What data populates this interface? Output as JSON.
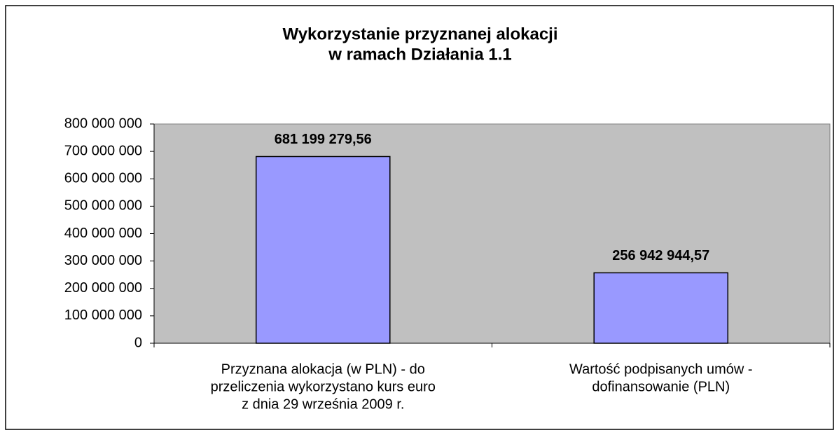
{
  "chart_data": {
    "type": "bar",
    "title": [
      "Wykorzystanie przyznanej alokacji",
      "w ramach Działania 1.1"
    ],
    "categories": [
      [
        "Przyznana alokacja (w PLN) - do",
        "przeliczenia wykorzystano kurs euro",
        "z dnia 29 września 2009 r."
      ],
      [
        "Wartość podpisanych umów -",
        "dofinansowanie (PLN)"
      ]
    ],
    "values": [
      681199279.56,
      256942944.57
    ],
    "value_labels": [
      "681 199 279,56",
      "256 942 944,57"
    ],
    "color": "#9999ff",
    "ylim": [
      0,
      800000000
    ],
    "yticks": [
      0,
      {
        "value": 100000000,
        "label": "100 000 000"
      },
      {
        "value": 200000000,
        "label": "200 000 000"
      },
      {
        "value": 300000000,
        "label": "300 000 000"
      },
      {
        "value": 400000000,
        "label": "400 000 000"
      },
      {
        "value": 500000000,
        "label": "500 000 000"
      },
      {
        "value": 600000000,
        "label": "600 000 000"
      },
      {
        "value": 700000000,
        "label": "700 000 000"
      },
      {
        "value": 800000000,
        "label": "800 000 000"
      }
    ],
    "grid": false
  }
}
